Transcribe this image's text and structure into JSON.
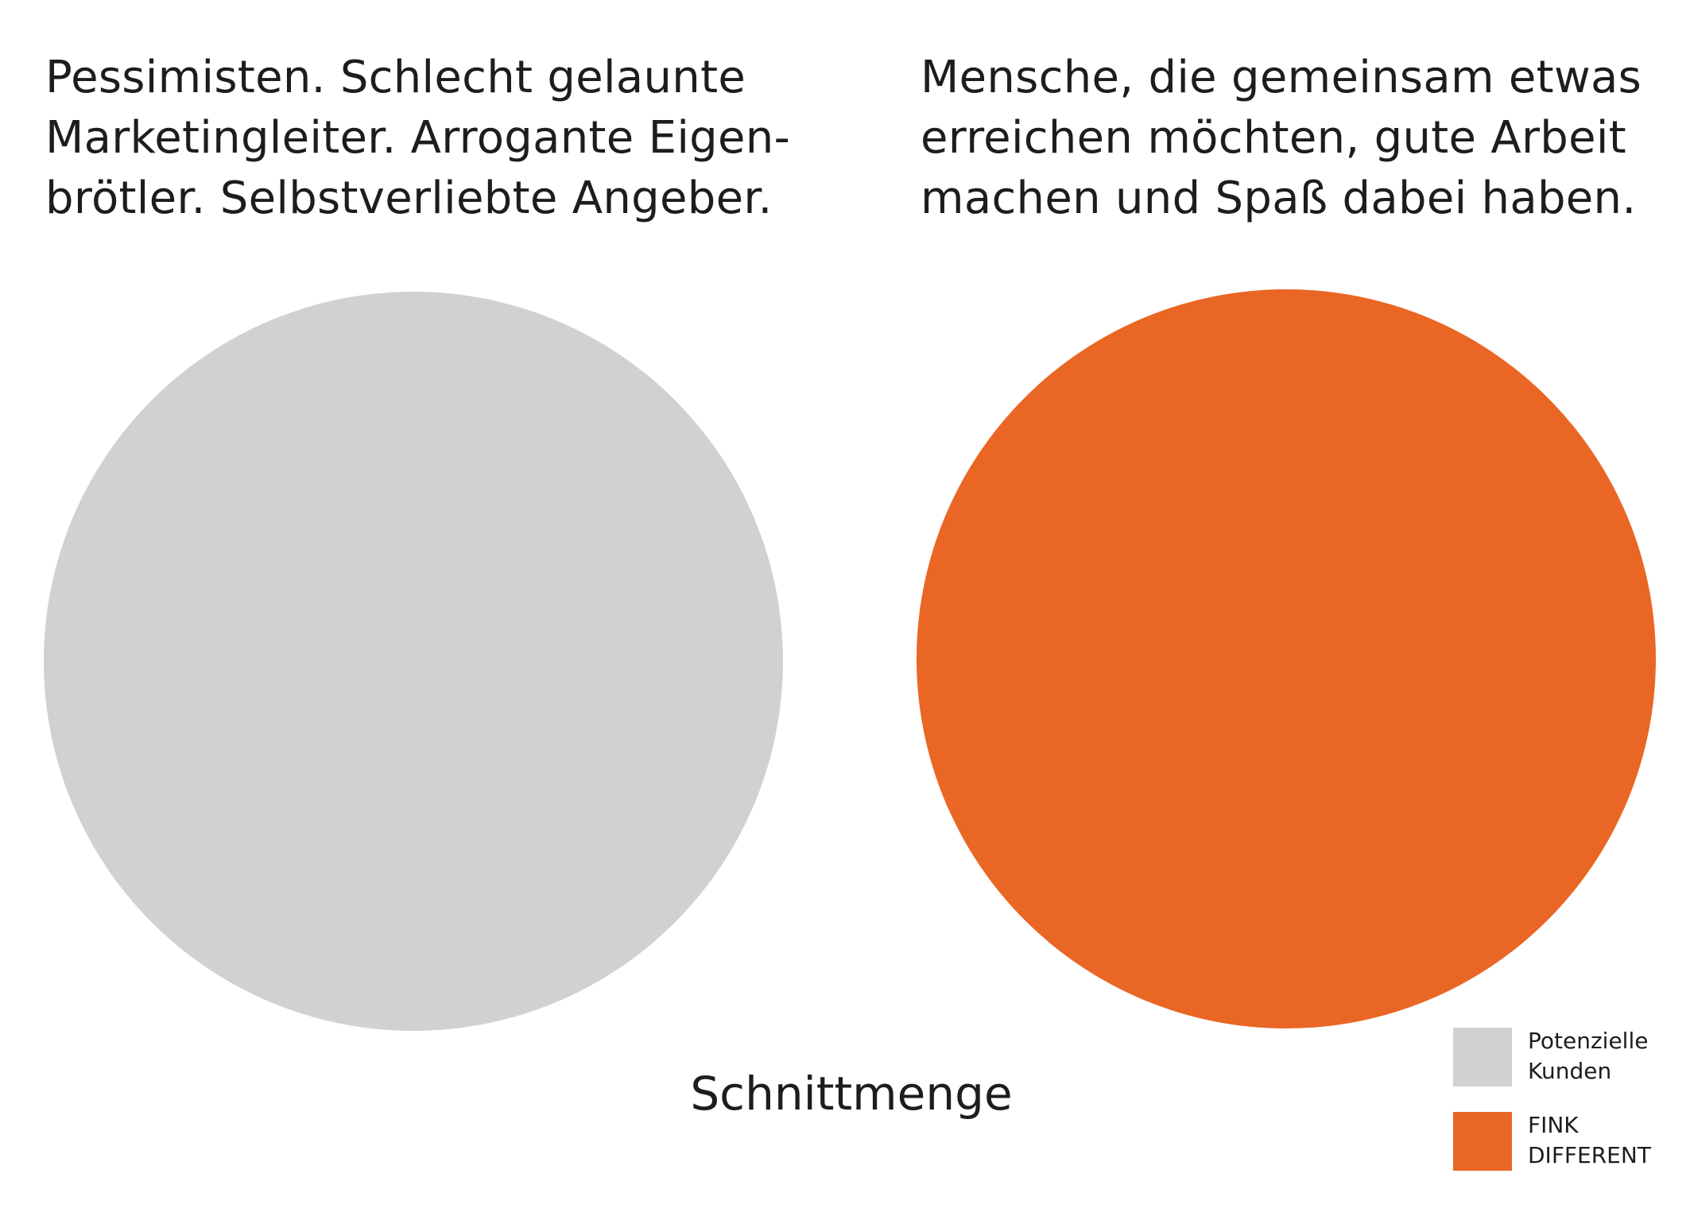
{
  "left_group": {
    "description": "Pessimisten. Schlecht gelaunte\nMarketingleiter. Arrogante Eigen-\nbrötler. Selbstverliebte Angeber.",
    "color": "#d0d1d0"
  },
  "right_group": {
    "description": "Mensche, die gemeinsam etwas\nerreichen möchten, gute Arbeit\nmachen und Spaß dabei haben.",
    "color": "#ea6625"
  },
  "intersection_label": "Schnittmenge",
  "legend": {
    "items": [
      {
        "label": "Potenzielle\nKunden",
        "color": "#d0d1d0"
      },
      {
        "label": "FINK\nDIFFERENT",
        "color": "#ea6625"
      }
    ]
  }
}
